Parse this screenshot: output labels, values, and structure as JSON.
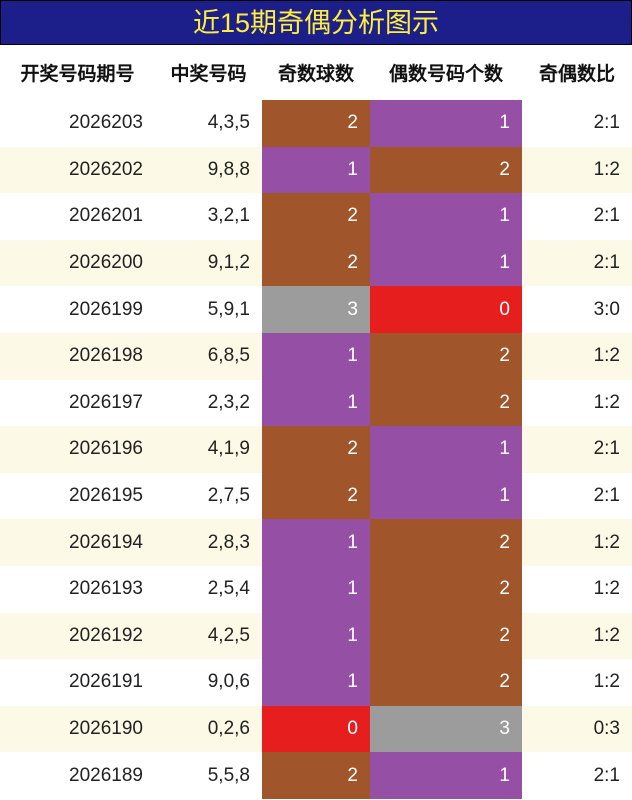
{
  "header": {
    "title": "近15期奇偶分析图示"
  },
  "table": {
    "columns": [
      "开奖号码期号",
      "中奖号码",
      "奇数球数",
      "偶数号码个数",
      "奇偶数比"
    ],
    "count_colors": [
      "#e61e1e",
      "#9550a6",
      "#a0552a",
      "#9c9c9c"
    ],
    "rows": [
      [
        "2026203",
        "4,3,5",
        2,
        1,
        "2:1"
      ],
      [
        "2026202",
        "9,8,8",
        1,
        2,
        "1:2"
      ],
      [
        "2026201",
        "3,2,1",
        2,
        1,
        "2:1"
      ],
      [
        "2026200",
        "9,1,2",
        2,
        1,
        "2:1"
      ],
      [
        "2026199",
        "5,9,1",
        3,
        0,
        "3:0"
      ],
      [
        "2026198",
        "6,8,5",
        1,
        2,
        "1:2"
      ],
      [
        "2026197",
        "2,3,2",
        1,
        2,
        "1:2"
      ],
      [
        "2026196",
        "4,1,9",
        2,
        1,
        "2:1"
      ],
      [
        "2026195",
        "2,7,5",
        2,
        1,
        "2:1"
      ],
      [
        "2026194",
        "2,8,3",
        1,
        2,
        "1:2"
      ],
      [
        "2026193",
        "2,5,4",
        1,
        2,
        "1:2"
      ],
      [
        "2026192",
        "4,2,5",
        1,
        2,
        "1:2"
      ],
      [
        "2026191",
        "9,0,6",
        1,
        2,
        "1:2"
      ],
      [
        "2026190",
        "0,2,6",
        0,
        3,
        "0:3"
      ],
      [
        "2026189",
        "5,5,8",
        2,
        1,
        "2:1"
      ]
    ]
  }
}
